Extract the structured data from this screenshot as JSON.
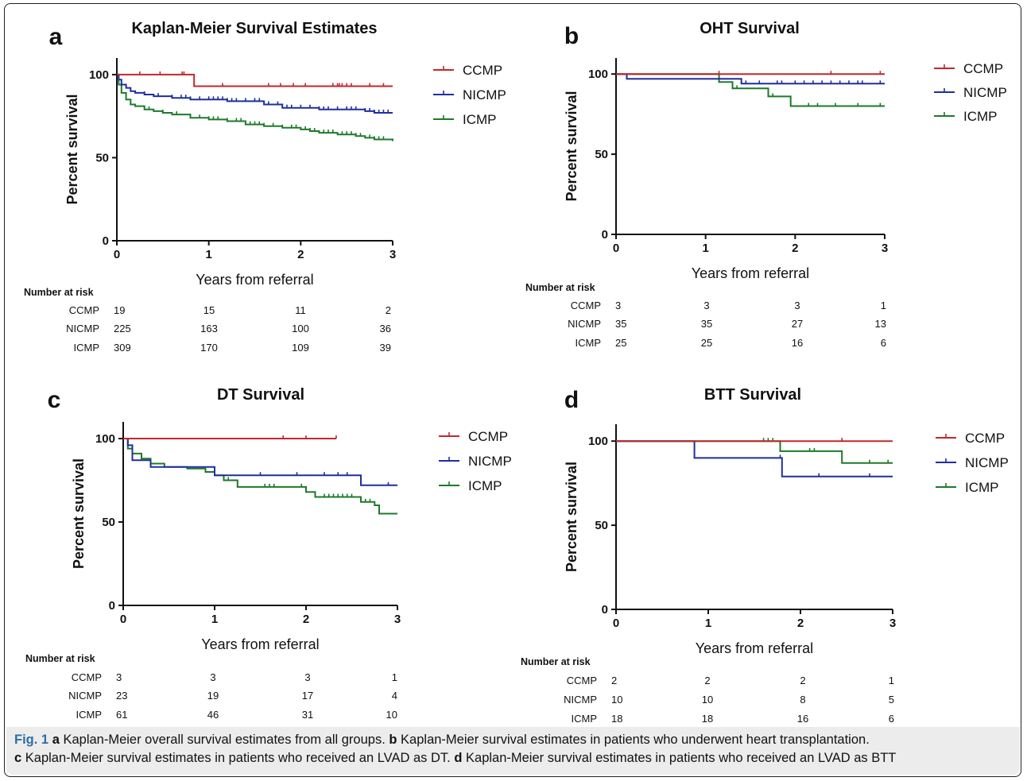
{
  "colors": {
    "CCMP": "#c0282d",
    "NICMP": "#1f2f9e",
    "ICMP": "#1d7a2a",
    "caption_fig": "#2e6da4"
  },
  "caption": {
    "fig_label": "Fig. 1",
    "parts": [
      {
        "letter": "a",
        "text": " Kaplan-Meier overall survival estimates from all groups. "
      },
      {
        "letter": "b",
        "text": " Kaplan-Meier survival estimates in patients who underwent heart transplantation."
      },
      {
        "letter": "c",
        "text": " Kaplan-Meier survival estimates in patients who received an LVAD as DT. "
      },
      {
        "letter": "d",
        "text": " Kaplan-Meier survival estimates in patients who received an LVAD as BTT"
      }
    ]
  },
  "chart_data": [
    {
      "panel_letter": "a",
      "type": "line",
      "title": "Kaplan-Meier Survival Estimates",
      "xlabel": "Years from referral",
      "ylabel": "Percent survival",
      "xlim": [
        0,
        3
      ],
      "ylim": [
        0,
        110
      ],
      "xticks": [
        0,
        1,
        2,
        3
      ],
      "yticks": [
        0,
        50,
        100
      ],
      "legend_position": "right",
      "series": [
        {
          "name": "CCMP",
          "step_points": [
            [
              0,
              100
            ],
            [
              0.84,
              100
            ],
            [
              0.84,
              93
            ],
            [
              3,
              93
            ]
          ],
          "censor_times": [
            0.25,
            0.47,
            0.71,
            0.73,
            1.15,
            1.65,
            1.78,
            1.92,
            2.05,
            2.35,
            2.4,
            2.42,
            2.45,
            2.5,
            2.55,
            2.75,
            2.9
          ]
        },
        {
          "name": "NICMP",
          "step_points": [
            [
              0,
              100
            ],
            [
              0.02,
              97
            ],
            [
              0.05,
              94
            ],
            [
              0.1,
              92
            ],
            [
              0.15,
              90
            ],
            [
              0.2,
              89
            ],
            [
              0.3,
              88
            ],
            [
              0.4,
              87
            ],
            [
              0.6,
              86
            ],
            [
              0.8,
              85
            ],
            [
              1.0,
              85
            ],
            [
              1.2,
              84
            ],
            [
              1.4,
              84
            ],
            [
              1.6,
              82
            ],
            [
              1.8,
              80
            ],
            [
              2.0,
              80
            ],
            [
              2.2,
              79
            ],
            [
              2.4,
              79
            ],
            [
              2.6,
              79
            ],
            [
              2.7,
              78
            ],
            [
              2.8,
              77
            ],
            [
              3,
              77
            ]
          ],
          "censor_times": [
            0.3,
            0.45,
            0.6,
            0.7,
            0.75,
            0.8,
            0.9,
            1.0,
            1.05,
            1.1,
            1.15,
            1.2,
            1.25,
            1.3,
            1.4,
            1.5,
            1.55,
            1.65,
            1.75,
            1.85,
            1.9,
            2.0,
            2.1,
            2.2,
            2.25,
            2.3,
            2.4,
            2.5,
            2.55,
            2.6,
            2.7,
            2.75,
            2.8,
            2.85,
            2.9,
            2.95
          ]
        },
        {
          "name": "ICMP",
          "step_points": [
            [
              0,
              100
            ],
            [
              0.02,
              94
            ],
            [
              0.05,
              89
            ],
            [
              0.1,
              85
            ],
            [
              0.15,
              82
            ],
            [
              0.2,
              81
            ],
            [
              0.3,
              79
            ],
            [
              0.4,
              78
            ],
            [
              0.5,
              77
            ],
            [
              0.6,
              76
            ],
            [
              0.8,
              74
            ],
            [
              1.0,
              73
            ],
            [
              1.2,
              72
            ],
            [
              1.4,
              70
            ],
            [
              1.6,
              69
            ],
            [
              1.8,
              68
            ],
            [
              2.0,
              67
            ],
            [
              2.1,
              66
            ],
            [
              2.2,
              65
            ],
            [
              2.4,
              64
            ],
            [
              2.6,
              63
            ],
            [
              2.7,
              62
            ],
            [
              2.8,
              61
            ],
            [
              3,
              60
            ]
          ],
          "censor_times": [
            0.35,
            0.5,
            0.65,
            0.8,
            0.9,
            1.0,
            1.05,
            1.1,
            1.2,
            1.3,
            1.35,
            1.45,
            1.5,
            1.55,
            1.6,
            1.7,
            1.8,
            1.9,
            1.95,
            2.05,
            2.1,
            2.15,
            2.25,
            2.3,
            2.35,
            2.45,
            2.5,
            2.55,
            2.6,
            2.65,
            2.75,
            2.8,
            2.85,
            2.9
          ]
        }
      ],
      "risk_table": {
        "header": "Number at risk",
        "rows": [
          {
            "label": "CCMP",
            "values": [
              "19",
              "15",
              "11",
              "2"
            ]
          },
          {
            "label": "NICMP",
            "values": [
              "225",
              "163",
              "100",
              "36"
            ]
          },
          {
            "label": "ICMP",
            "values": [
              "309",
              "170",
              "109",
              "39"
            ]
          }
        ]
      }
    },
    {
      "panel_letter": "b",
      "type": "line",
      "title": "OHT Survival",
      "xlabel": "Years from referral",
      "ylabel": "Percent survival",
      "xlim": [
        0,
        3
      ],
      "ylim": [
        0,
        110
      ],
      "xticks": [
        0,
        1,
        2,
        3
      ],
      "yticks": [
        0,
        50,
        100
      ],
      "legend_position": "right",
      "series": [
        {
          "name": "CCMP",
          "step_points": [
            [
              0,
              100
            ],
            [
              3,
              100
            ]
          ],
          "censor_times": [
            1.15,
            2.4,
            2.95
          ]
        },
        {
          "name": "NICMP",
          "step_points": [
            [
              0,
              100
            ],
            [
              0.12,
              100
            ],
            [
              0.12,
              97
            ],
            [
              1.4,
              97
            ],
            [
              1.4,
              94
            ],
            [
              3,
              94
            ]
          ],
          "censor_times": [
            1.45,
            1.6,
            1.8,
            1.85,
            2.0,
            2.1,
            2.2,
            2.3,
            2.4,
            2.5,
            2.6,
            2.7,
            2.75,
            2.95
          ]
        },
        {
          "name": "ICMP",
          "step_points": [
            [
              0,
              100
            ],
            [
              1.15,
              100
            ],
            [
              1.15,
              95
            ],
            [
              1.3,
              95
            ],
            [
              1.3,
              91
            ],
            [
              1.7,
              91
            ],
            [
              1.7,
              86
            ],
            [
              1.95,
              86
            ],
            [
              1.95,
              80
            ],
            [
              3,
              80
            ]
          ],
          "censor_times": [
            1.15,
            1.35,
            1.75,
            2.15,
            2.25,
            2.45,
            2.7,
            2.95
          ]
        }
      ],
      "risk_table": {
        "header": "Number at risk",
        "rows": [
          {
            "label": "CCMP",
            "values": [
              "3",
              "3",
              "3",
              "1"
            ]
          },
          {
            "label": "NICMP",
            "values": [
              "35",
              "35",
              "27",
              "13"
            ]
          },
          {
            "label": "ICMP",
            "values": [
              "25",
              "25",
              "16",
              "6"
            ]
          }
        ]
      }
    },
    {
      "panel_letter": "c",
      "type": "line",
      "title": "DT Survival",
      "xlabel": "Years from referral",
      "ylabel": "Percent survival",
      "xlim": [
        0,
        3
      ],
      "ylim": [
        0,
        110
      ],
      "xticks": [
        0,
        1,
        2,
        3
      ],
      "yticks": [
        0,
        50,
        100
      ],
      "legend_position": "right",
      "series": [
        {
          "name": "CCMP",
          "step_points": [
            [
              0,
              100
            ],
            [
              2.33,
              100
            ]
          ],
          "censor_times": [
            1.75,
            2.0,
            2.33
          ]
        },
        {
          "name": "NICMP",
          "step_points": [
            [
              0,
              100
            ],
            [
              0.05,
              96
            ],
            [
              0.1,
              87
            ],
            [
              0.3,
              87
            ],
            [
              0.3,
              83
            ],
            [
              1.0,
              83
            ],
            [
              1.0,
              78
            ],
            [
              2.6,
              78
            ],
            [
              2.6,
              72
            ],
            [
              3,
              72
            ]
          ],
          "censor_times": [
            1.5,
            1.9,
            2.2,
            2.35,
            2.45,
            2.9
          ]
        },
        {
          "name": "ICMP",
          "step_points": [
            [
              0,
              100
            ],
            [
              0.05,
              94
            ],
            [
              0.1,
              91
            ],
            [
              0.2,
              88
            ],
            [
              0.3,
              85
            ],
            [
              0.45,
              83
            ],
            [
              0.7,
              82
            ],
            [
              0.9,
              80
            ],
            [
              1.0,
              78
            ],
            [
              1.1,
              75
            ],
            [
              1.25,
              71
            ],
            [
              1.85,
              71
            ],
            [
              2.0,
              68
            ],
            [
              2.1,
              65
            ],
            [
              2.6,
              62
            ],
            [
              2.75,
              60
            ],
            [
              2.8,
              55
            ],
            [
              3,
              55
            ]
          ],
          "censor_times": [
            1.15,
            1.55,
            1.6,
            1.65,
            1.95,
            2.2,
            2.25,
            2.3,
            2.35,
            2.4,
            2.45,
            2.5,
            2.65,
            2.7
          ]
        }
      ],
      "risk_table": {
        "header": "Number at risk",
        "rows": [
          {
            "label": "CCMP",
            "values": [
              "3",
              "3",
              "3",
              "1"
            ]
          },
          {
            "label": "NICMP",
            "values": [
              "23",
              "19",
              "17",
              "4"
            ]
          },
          {
            "label": "ICMP",
            "values": [
              "61",
              "46",
              "31",
              "10"
            ]
          }
        ]
      }
    },
    {
      "panel_letter": "d",
      "type": "line",
      "title": "BTT Survival",
      "xlabel": "Years from referral",
      "ylabel": "Percent survival",
      "xlim": [
        0,
        3
      ],
      "ylim": [
        0,
        110
      ],
      "xticks": [
        0,
        1,
        2,
        3
      ],
      "yticks": [
        0,
        50,
        100
      ],
      "legend_position": "right",
      "series": [
        {
          "name": "CCMP",
          "step_points": [
            [
              0,
              100
            ],
            [
              3,
              100
            ]
          ],
          "censor_times": [
            2.45
          ]
        },
        {
          "name": "NICMP",
          "step_points": [
            [
              0,
              100
            ],
            [
              0.85,
              100
            ],
            [
              0.85,
              90
            ],
            [
              1.8,
              90
            ],
            [
              1.8,
              79
            ],
            [
              3,
              79
            ]
          ],
          "censor_times": [
            1.78,
            2.2,
            2.75
          ]
        },
        {
          "name": "ICMP",
          "step_points": [
            [
              0,
              100
            ],
            [
              1.78,
              100
            ],
            [
              1.78,
              94
            ],
            [
              2.45,
              94
            ],
            [
              2.45,
              87
            ],
            [
              3,
              87
            ]
          ],
          "censor_times": [
            1.6,
            1.65,
            1.7,
            2.1,
            2.15,
            2.75,
            2.95
          ]
        }
      ],
      "risk_table": {
        "header": "Number at risk",
        "rows": [
          {
            "label": "CCMP",
            "values": [
              "2",
              "2",
              "2",
              "1"
            ]
          },
          {
            "label": "NICMP",
            "values": [
              "10",
              "10",
              "8",
              "5"
            ]
          },
          {
            "label": "ICMP",
            "values": [
              "18",
              "18",
              "16",
              "6"
            ]
          }
        ]
      }
    }
  ]
}
